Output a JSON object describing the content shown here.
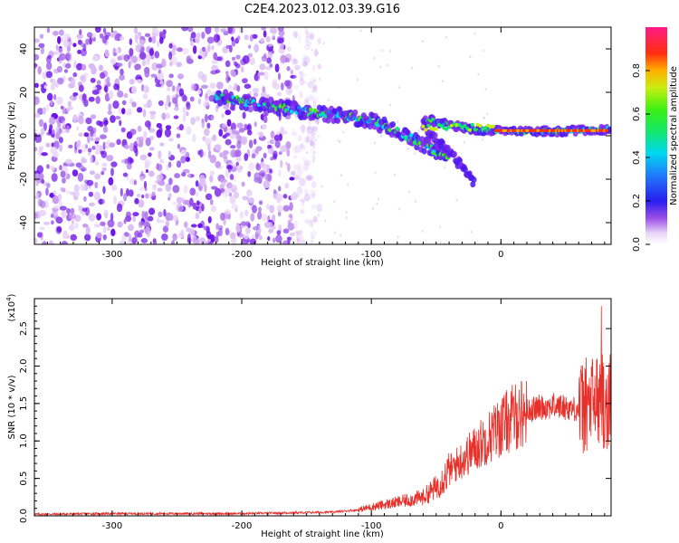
{
  "title": "C2E4.2023.012.03.39.G16",
  "colors": {
    "snr_line": "#e8302a",
    "background": "#ffffff"
  },
  "chart_data": [
    {
      "type": "heatmap",
      "name": "spectrogram",
      "xlabel": "Height of straight line (km)",
      "ylabel": "Frequency (Hz)",
      "xlim": [
        -360,
        85
      ],
      "ylim": [
        -50,
        50
      ],
      "x_ticks": [
        -300,
        -200,
        -100,
        0
      ],
      "y_ticks": [
        40,
        20,
        0,
        -20,
        -40
      ],
      "x_tick_labels": [
        "-300",
        "-200",
        "-100",
        "0"
      ],
      "y_tick_labels": [
        "40",
        "20",
        "0",
        "-20",
        "-40"
      ],
      "colorbar": {
        "label": "Normalized spectral amplitude",
        "range": [
          0.0,
          1.0
        ],
        "ticks": [
          0.0,
          0.2,
          0.4,
          0.6,
          0.8
        ],
        "tick_labels": [
          "0.0",
          "0.2",
          "0.4",
          "0.6",
          "0.8"
        ],
        "colormap": "white-purple-blue-cyan-green-yellow-red-magenta"
      },
      "features": {
        "noise_region_x": [
          -360,
          -150
        ],
        "main_trace": [
          [
            -220,
            18
          ],
          [
            -180,
            14
          ],
          [
            -150,
            11
          ],
          [
            -120,
            9
          ],
          [
            -100,
            7
          ],
          [
            -80,
            2
          ],
          [
            -60,
            -4
          ],
          [
            -40,
            -10
          ]
        ],
        "branch_trace": [
          [
            -60,
            5
          ],
          [
            -45,
            -5
          ],
          [
            -30,
            -14
          ],
          [
            -20,
            -22
          ]
        ],
        "stable_line": [
          [
            -60,
            8
          ],
          [
            -40,
            5
          ],
          [
            -20,
            3
          ],
          [
            0,
            2
          ],
          [
            40,
            2
          ],
          [
            85,
            3
          ]
        ]
      }
    },
    {
      "type": "line",
      "name": "snr",
      "xlabel": "Height of straight line (km)",
      "ylabel": "SNR (10 * v/v)",
      "y_multiplier_label": "(x10",
      "y_multiplier_exp": "4",
      "y_multiplier_close": ")",
      "xlim": [
        -360,
        85
      ],
      "ylim": [
        0,
        2.9
      ],
      "x_ticks": [
        -300,
        -200,
        -100,
        0
      ],
      "y_ticks": [
        0.0,
        0.5,
        1.0,
        1.5,
        2.0,
        2.5
      ],
      "x_tick_labels": [
        "-300",
        "-200",
        "-100",
        "0"
      ],
      "y_tick_labels": [
        "0.0",
        "0.5",
        "1.0",
        "1.5",
        "2.0",
        "2.5"
      ],
      "envelope": {
        "x": [
          -360,
          -300,
          -200,
          -130,
          -110,
          -100,
          -80,
          -60,
          -50,
          -40,
          -30,
          -20,
          -10,
          0,
          10,
          20,
          30,
          40,
          50,
          60,
          70,
          80,
          85
        ],
        "y": [
          0.02,
          0.03,
          0.03,
          0.05,
          0.08,
          0.12,
          0.18,
          0.25,
          0.38,
          0.6,
          0.75,
          0.9,
          1.05,
          1.2,
          1.32,
          1.4,
          1.45,
          1.47,
          1.45,
          1.42,
          1.5,
          1.6,
          1.5
        ]
      }
    }
  ]
}
